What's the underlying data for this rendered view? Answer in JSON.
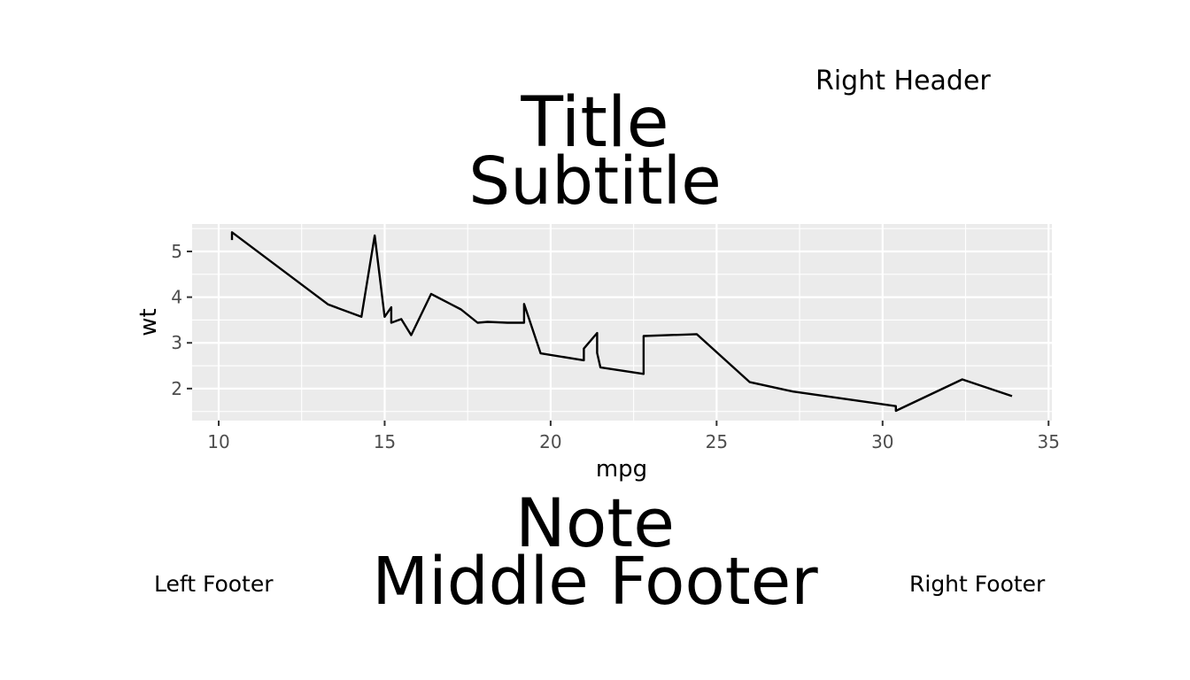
{
  "header": {
    "right": "Right Header"
  },
  "titles": {
    "title": "Title",
    "subtitle": "Subtitle"
  },
  "note": "Note",
  "footer": {
    "left": "Left Footer",
    "middle": "Middle Footer",
    "right": "Right Footer"
  },
  "colors": {
    "panel": "#ebebeb",
    "grid": "#ffffff",
    "line": "#000000",
    "tick_text": "#4d4d4d"
  },
  "chart_data": {
    "type": "line",
    "xlabel": "mpg",
    "ylabel": "wt",
    "xlim": [
      9.2,
      35.1
    ],
    "ylim": [
      1.3,
      5.6
    ],
    "x_ticks": [
      10,
      15,
      20,
      25,
      30,
      35
    ],
    "y_ticks": [
      2,
      3,
      4,
      5
    ],
    "grid": true,
    "x": [
      10.4,
      10.4,
      13.3,
      14.3,
      14.7,
      15.0,
      15.2,
      15.2,
      15.5,
      15.8,
      16.4,
      17.3,
      17.8,
      18.1,
      18.7,
      19.2,
      19.2,
      19.7,
      21.0,
      21.0,
      21.4,
      21.4,
      21.5,
      22.8,
      22.8,
      24.4,
      26.0,
      27.3,
      30.4,
      30.4,
      32.4,
      33.9
    ],
    "y": [
      5.25,
      5.42,
      3.84,
      3.57,
      5.35,
      3.57,
      3.78,
      3.44,
      3.52,
      3.17,
      4.07,
      3.73,
      3.44,
      3.46,
      3.44,
      3.44,
      3.85,
      2.77,
      2.62,
      2.875,
      3.215,
      2.78,
      2.465,
      2.32,
      3.15,
      3.19,
      2.14,
      1.935,
      1.615,
      1.513,
      2.2,
      1.835
    ]
  }
}
